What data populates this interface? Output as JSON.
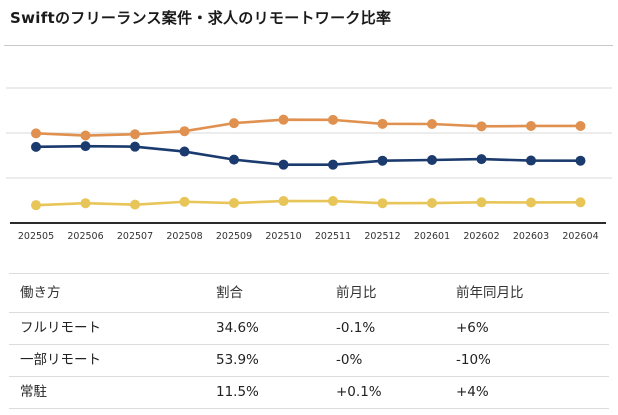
{
  "title": "Swiftのフリーランス案件・求人のリモートワーク比率",
  "colors": {
    "partial_remote": "#e0914f",
    "full_remote": "#1b3a6e",
    "onsite": "#e8c558",
    "gridline": "#d9d9d9",
    "axis_line": "#2b2b2b",
    "divider": "#c9c9c9",
    "table_border": "#dcdcdc",
    "tick_text": "#333333",
    "title_text": "#1a1a1a"
  },
  "chart_data": {
    "type": "line",
    "title": "Swiftのフリーランス案件・求人のリモートワーク比率",
    "xlabel": "",
    "ylabel": "",
    "ylim": [
      0,
      80
    ],
    "grid": "horizontal",
    "gridline_values": [
      25,
      50,
      75
    ],
    "legend": "none",
    "categories": [
      "202505",
      "202506",
      "202507",
      "202508",
      "202509",
      "202510",
      "202511",
      "202512",
      "202601",
      "202602",
      "202603",
      "202604"
    ],
    "series": [
      {
        "key": "partial-remote",
        "name": "一部リモート",
        "color": "#e0914f",
        "values": [
          49.8,
          48.6,
          49.3,
          51.0,
          55.5,
          57.4,
          57.3,
          55.1,
          55.0,
          53.7,
          53.9,
          53.9
        ]
      },
      {
        "key": "full-remote",
        "name": "フルリモート",
        "color": "#1b3a6e",
        "values": [
          42.3,
          42.7,
          42.4,
          39.7,
          35.2,
          32.4,
          32.4,
          34.6,
          35.0,
          35.5,
          34.7,
          34.6
        ]
      },
      {
        "key": "onsite",
        "name": "常駐",
        "color": "#e8c558",
        "values": [
          9.9,
          11.0,
          10.2,
          11.8,
          11.1,
          12.2,
          12.2,
          11.0,
          11.1,
          11.5,
          11.4,
          11.5
        ]
      }
    ]
  },
  "table": {
    "headers": [
      "働き方",
      "割合",
      "前月比",
      "前年同月比"
    ],
    "rows": [
      {
        "label": "フルリモート",
        "ratio": "34.6%",
        "mom": "-0.1%",
        "yoy": "+6%"
      },
      {
        "label": "一部リモート",
        "ratio": "53.9%",
        "mom": "-0%",
        "yoy": "-10%"
      },
      {
        "label": "常駐",
        "ratio": "11.5%",
        "mom": "+0.1%",
        "yoy": "+4%"
      }
    ]
  }
}
